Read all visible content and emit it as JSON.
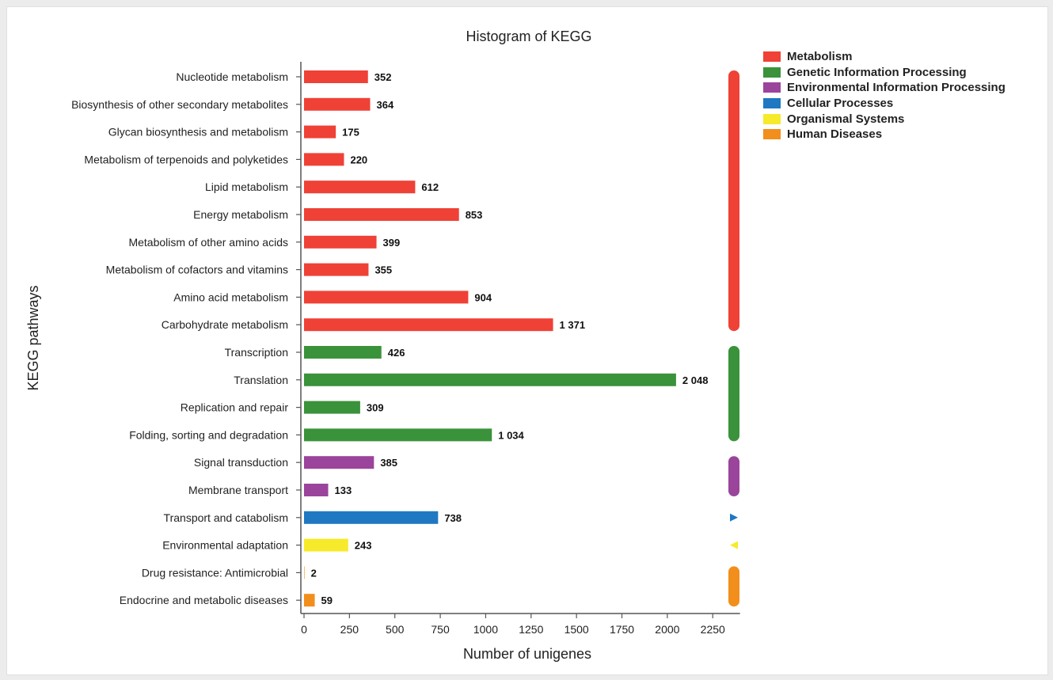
{
  "chart_data": {
    "type": "bar",
    "orientation": "horizontal",
    "title": "Histogram of KEGG",
    "xlabel": "Number of unigenes",
    "ylabel": "KEGG pathways",
    "xlim": [
      0,
      2400
    ],
    "xticks": [
      0,
      250,
      500,
      750,
      1000,
      1250,
      1500,
      1750,
      2000,
      2250
    ],
    "grid": false,
    "legend_position": "top-right",
    "groups": [
      {
        "name": "Metabolism",
        "color": "#ef4136"
      },
      {
        "name": "Genetic Information Processing",
        "color": "#3a923a"
      },
      {
        "name": "Environmental Information Processing",
        "color": "#9b449b"
      },
      {
        "name": "Cellular Processes",
        "color": "#1f78c1"
      },
      {
        "name": "Organismal Systems",
        "color": "#f7ea2a"
      },
      {
        "name": "Human Diseases",
        "color": "#f28e1c"
      }
    ],
    "bars": [
      {
        "category": "Nucleotide metabolism",
        "value": 352,
        "label": "352",
        "group": 0
      },
      {
        "category": "Biosynthesis of other secondary metabolites",
        "value": 364,
        "label": "364",
        "group": 0
      },
      {
        "category": "Glycan biosynthesis and metabolism",
        "value": 175,
        "label": "175",
        "group": 0
      },
      {
        "category": "Metabolism of terpenoids and polyketides",
        "value": 220,
        "label": "220",
        "group": 0
      },
      {
        "category": "Lipid metabolism",
        "value": 612,
        "label": "612",
        "group": 0
      },
      {
        "category": "Energy metabolism",
        "value": 853,
        "label": "853",
        "group": 0
      },
      {
        "category": "Metabolism of other amino acids",
        "value": 399,
        "label": "399",
        "group": 0
      },
      {
        "category": "Metabolism of cofactors and vitamins",
        "value": 355,
        "label": "355",
        "group": 0
      },
      {
        "category": "Amino acid metabolism",
        "value": 904,
        "label": "904",
        "group": 0
      },
      {
        "category": "Carbohydrate metabolism",
        "value": 1371,
        "label": "1 371",
        "group": 0
      },
      {
        "category": "Transcription",
        "value": 426,
        "label": "426",
        "group": 1
      },
      {
        "category": "Translation",
        "value": 2048,
        "label": "2 048",
        "group": 1
      },
      {
        "category": "Replication and repair",
        "value": 309,
        "label": "309",
        "group": 1
      },
      {
        "category": "Folding, sorting and degradation",
        "value": 1034,
        "label": "1 034",
        "group": 1
      },
      {
        "category": "Signal transduction",
        "value": 385,
        "label": "385",
        "group": 2
      },
      {
        "category": "Membrane transport",
        "value": 133,
        "label": "133",
        "group": 2
      },
      {
        "category": "Transport and catabolism",
        "value": 738,
        "label": "738",
        "group": 3
      },
      {
        "category": "Environmental adaptation",
        "value": 243,
        "label": "243",
        "group": 4
      },
      {
        "category": "Drug resistance: Antimicrobial",
        "value": 2,
        "label": "2",
        "group": 5
      },
      {
        "category": "Endocrine and metabolic diseases",
        "value": 59,
        "label": "59",
        "group": 5
      }
    ]
  }
}
